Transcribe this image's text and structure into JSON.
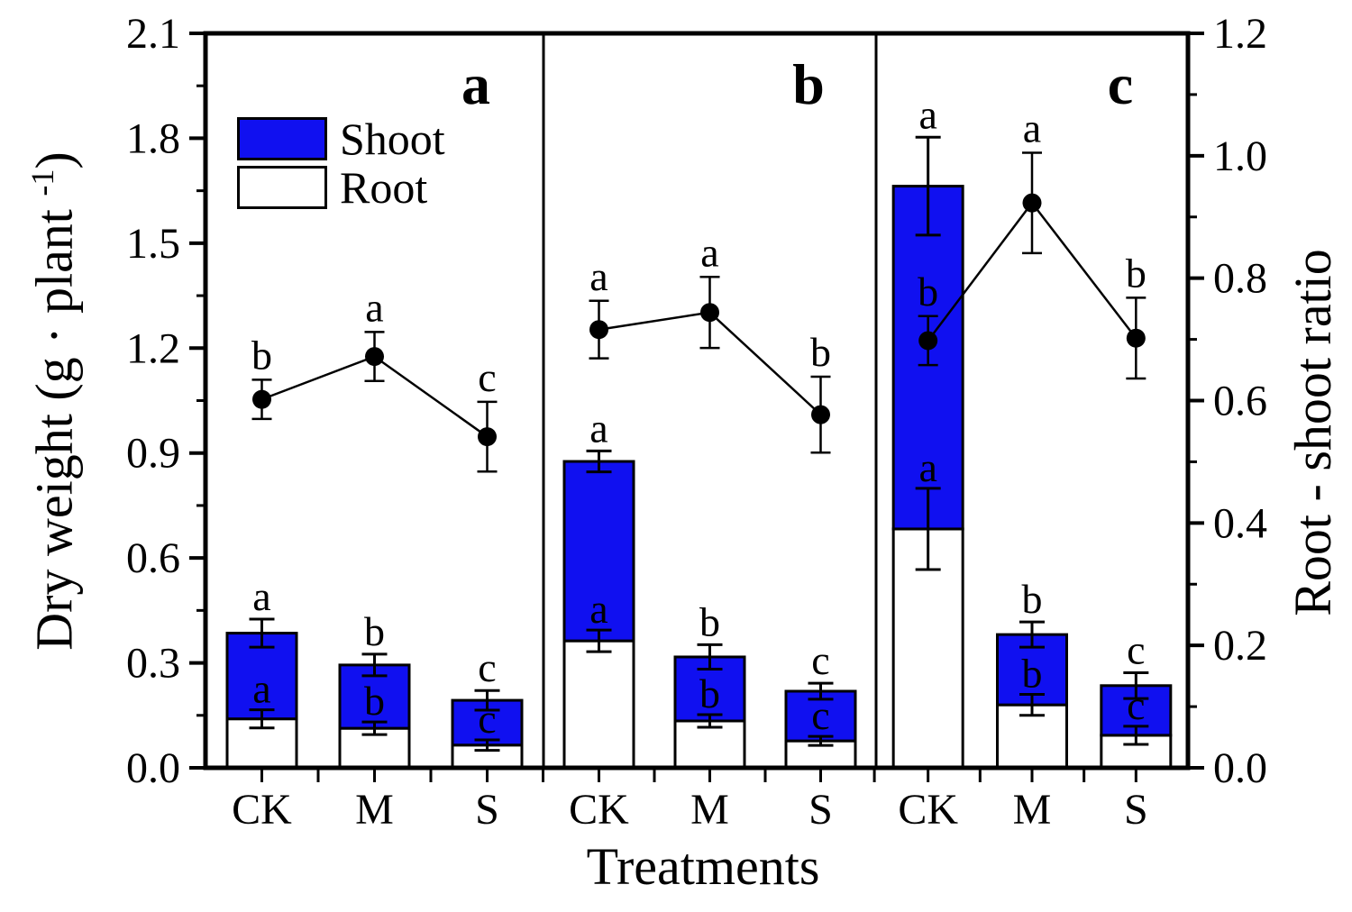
{
  "chart_data": {
    "type": "bar",
    "subtype": "stacked-bars-with-line-overlay",
    "title": "",
    "xlabel": "Treatments",
    "ylabel_left": "Dry weight (g · plant -1)",
    "ylabel_left_main": "Dry weight (g · plant ",
    "ylabel_left_sup": "-1",
    "ylabel_left_end": ")",
    "ylabel_right": "Root - shoot ratio",
    "categories": [
      "CK",
      "M",
      "S"
    ],
    "left_axis": {
      "range": [
        0.0,
        2.1
      ],
      "major_step": 0.3,
      "minor_step": 0.15,
      "tick_labels": [
        "0.0",
        "0.3",
        "0.6",
        "0.9",
        "1.2",
        "1.5",
        "1.8",
        "2.1"
      ]
    },
    "right_axis": {
      "range": [
        0.0,
        1.2
      ],
      "major_step": 0.2,
      "minor_step": 0.1,
      "tick_labels": [
        "0.0",
        "0.2",
        "0.4",
        "0.6",
        "0.8",
        "1.0",
        "1.2"
      ]
    },
    "legend": {
      "position": "top-left",
      "entries": [
        {
          "label": "Shoot",
          "color": "#1010f0"
        },
        {
          "label": "Root",
          "color": "#ffffff"
        }
      ]
    },
    "colors": {
      "shoot": "#1010f0",
      "root": "#ffffff",
      "line": "#000000",
      "frame": "#000000"
    },
    "grid": false,
    "panels": [
      {
        "label": "a",
        "bars": [
          {
            "category": "CK",
            "root": 0.14,
            "shoot": 0.245,
            "total": 0.385,
            "total_err": 0.04,
            "root_err": 0.026,
            "total_letter": "a",
            "root_letter": "a"
          },
          {
            "category": "M",
            "root": 0.113,
            "shoot": 0.181,
            "total": 0.294,
            "total_err": 0.031,
            "root_err": 0.018,
            "total_letter": "b",
            "root_letter": "b"
          },
          {
            "category": "S",
            "root": 0.065,
            "shoot": 0.128,
            "total": 0.193,
            "total_err": 0.028,
            "root_err": 0.015,
            "total_letter": "c",
            "root_letter": "c"
          }
        ],
        "ratio_points": [
          {
            "category": "CK",
            "value": 0.602,
            "err": 0.032,
            "letter": "b"
          },
          {
            "category": "M",
            "value": 0.672,
            "err": 0.04,
            "letter": "a"
          },
          {
            "category": "S",
            "value": 0.541,
            "err": 0.057,
            "letter": "c"
          }
        ]
      },
      {
        "label": "b",
        "bars": [
          {
            "category": "CK",
            "root": 0.363,
            "shoot": 0.513,
            "total": 0.876,
            "total_err": 0.03,
            "root_err": 0.031,
            "total_letter": "a",
            "root_letter": "a"
          },
          {
            "category": "M",
            "root": 0.134,
            "shoot": 0.183,
            "total": 0.317,
            "total_err": 0.035,
            "root_err": 0.018,
            "total_letter": "b",
            "root_letter": "b"
          },
          {
            "category": "S",
            "root": 0.077,
            "shoot": 0.142,
            "total": 0.219,
            "total_err": 0.023,
            "root_err": 0.013,
            "total_letter": "c",
            "root_letter": "c"
          }
        ],
        "ratio_points": [
          {
            "category": "CK",
            "value": 0.716,
            "err": 0.047,
            "letter": "a"
          },
          {
            "category": "M",
            "value": 0.744,
            "err": 0.058,
            "letter": "a"
          },
          {
            "category": "S",
            "value": 0.577,
            "err": 0.062,
            "letter": "b"
          }
        ]
      },
      {
        "label": "c",
        "bars": [
          {
            "category": "CK",
            "root": 0.683,
            "shoot": 0.98,
            "total": 1.663,
            "total_err": 0.14,
            "root_err": 0.116,
            "total_letter": "a",
            "root_letter": "a"
          },
          {
            "category": "M",
            "root": 0.18,
            "shoot": 0.201,
            "total": 0.381,
            "total_err": 0.036,
            "root_err": 0.03,
            "total_letter": "b",
            "root_letter": "b"
          },
          {
            "category": "S",
            "root": 0.093,
            "shoot": 0.142,
            "total": 0.235,
            "total_err": 0.037,
            "root_err": 0.026,
            "total_letter": "c",
            "root_letter": "c"
          }
        ],
        "ratio_points": [
          {
            "category": "CK",
            "value": 0.698,
            "err": 0.04,
            "letter": "b"
          },
          {
            "category": "M",
            "value": 0.923,
            "err": 0.082,
            "letter": "a"
          },
          {
            "category": "S",
            "value": 0.702,
            "err": 0.066,
            "letter": "b"
          }
        ]
      }
    ]
  }
}
